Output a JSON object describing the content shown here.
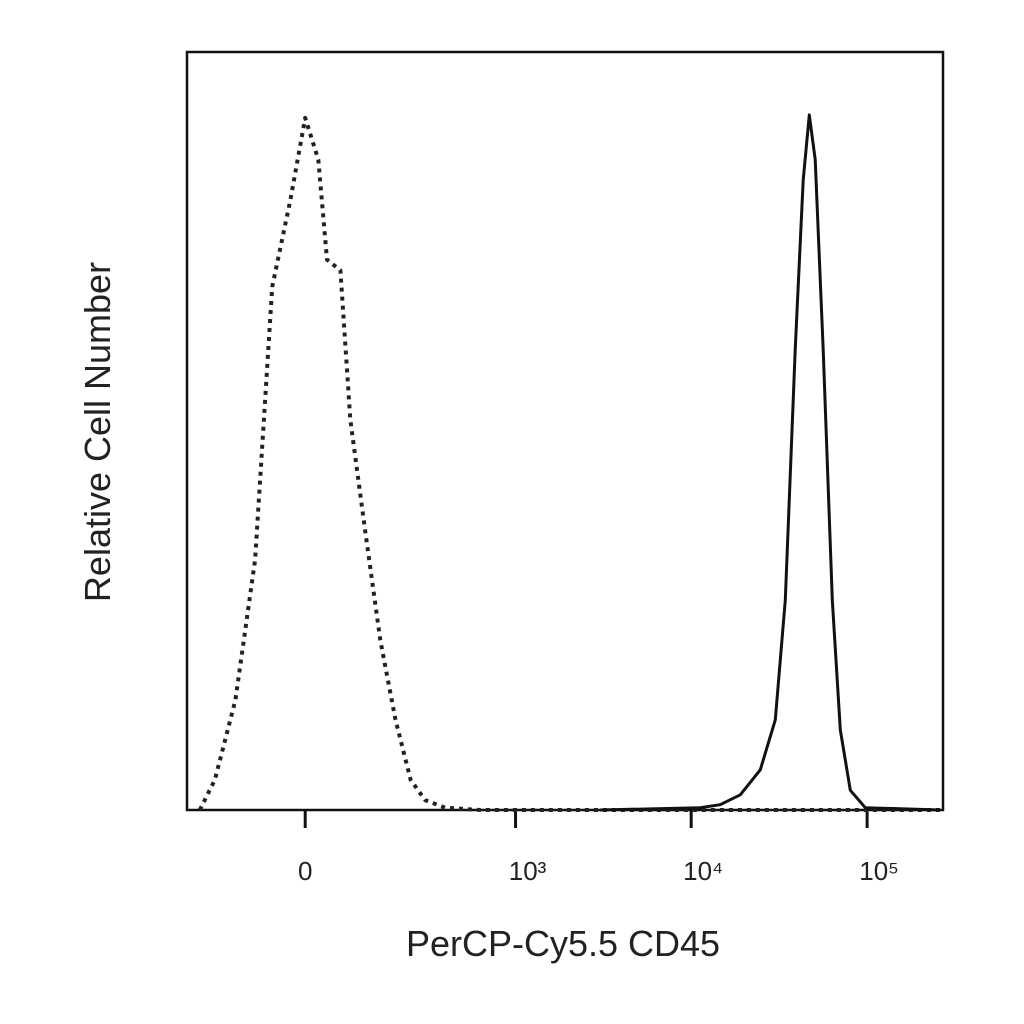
{
  "chart_data": {
    "type": "line",
    "x_label": "PerCP-Cy5.5 CD45",
    "y_label": "Relative Cell Number",
    "xscale": "biexponential",
    "xlim": [
      -287,
      270000
    ],
    "ylim": [
      0,
      100
    ],
    "xticks": [
      0,
      {
        "value": 1000,
        "label": "10³"
      },
      {
        "value": 10000,
        "label": "10⁴"
      },
      {
        "value": 100000,
        "label": "10⁵"
      }
    ],
    "series": [
      {
        "color": "#222222",
        "style": "dotted",
        "x": [
          -238,
          -189,
          -134,
          -90,
          -57,
          -25,
          0,
          22,
          37,
          61,
          80,
          111,
          147,
          189,
          238,
          294,
          389,
          626,
          11260,
          260000
        ],
        "values": [
          0,
          4,
          14.5,
          33,
          69,
          80.5,
          91.3,
          85.8,
          72.6,
          71.2,
          51.5,
          36.9,
          22.4,
          11.9,
          4,
          1.3,
          0.3,
          0,
          0,
          0
        ]
      },
      {
        "color": "#111111",
        "style": "solid",
        "x": [
          3036,
          11260,
          14630,
          19020,
          24720,
          30070,
          34270,
          39040,
          43340,
          46900,
          50710,
          56320,
          63390,
          70400,
          80250,
          97660,
          260000
        ],
        "values": [
          0,
          0.3,
          0.7,
          2,
          5.3,
          11.9,
          27.7,
          60.7,
          83.1,
          91.7,
          85.8,
          60.7,
          27.7,
          10.6,
          2.6,
          0.3,
          0
        ]
      }
    ]
  }
}
